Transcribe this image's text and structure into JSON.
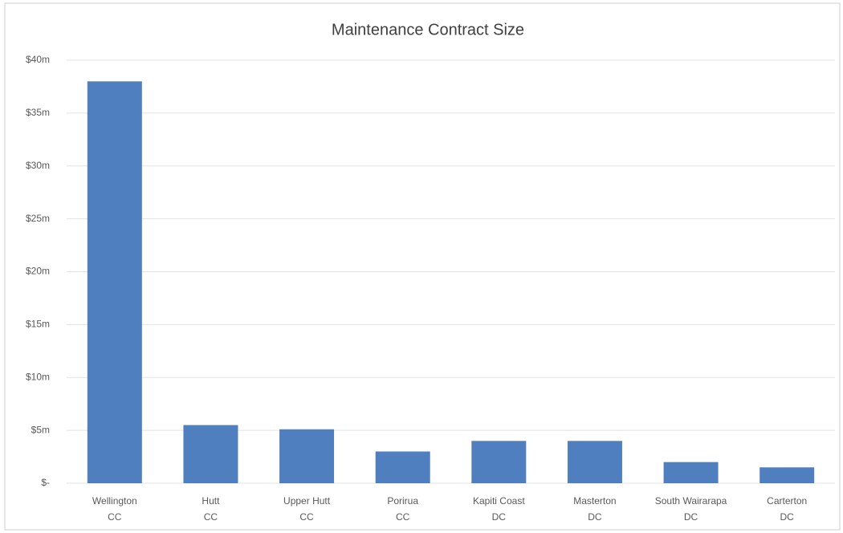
{
  "chart_data": {
    "type": "bar",
    "title": "Maintenance Contract Size",
    "categories": [
      [
        "Wellington",
        "CC"
      ],
      [
        "Hutt",
        "CC"
      ],
      [
        "Upper Hutt",
        "CC"
      ],
      [
        "Porirua",
        "CC"
      ],
      [
        "Kapiti Coast",
        "DC"
      ],
      [
        "Masterton",
        "DC"
      ],
      [
        "South Wairarapa",
        "DC"
      ],
      [
        "Carterton",
        "DC"
      ]
    ],
    "values": [
      38,
      5.5,
      5.1,
      3,
      4,
      4,
      2,
      1.5
    ],
    "color": "#4f7fbf",
    "ylim": [
      0,
      40
    ],
    "yticks": [
      {
        "value": 0,
        "label": "$-"
      },
      {
        "value": 5,
        "label": "$5m"
      },
      {
        "value": 10,
        "label": "$10m"
      },
      {
        "value": 15,
        "label": "$15m"
      },
      {
        "value": 20,
        "label": "$20m"
      },
      {
        "value": 25,
        "label": "$25m"
      },
      {
        "value": 30,
        "label": "$30m"
      },
      {
        "value": 35,
        "label": "$35m"
      },
      {
        "value": 40,
        "label": "$40m"
      }
    ],
    "grid": true
  }
}
